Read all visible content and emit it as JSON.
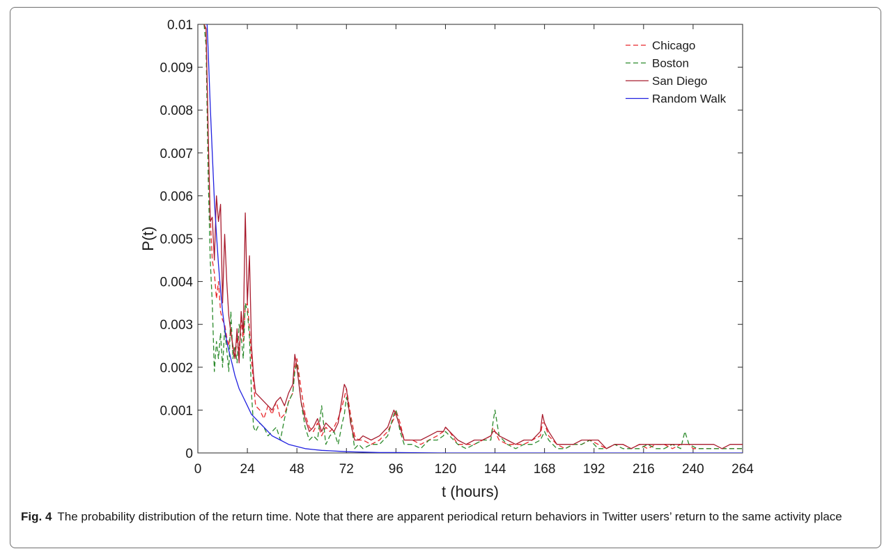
{
  "figure": {
    "label": "Fig. 4",
    "caption": "The probability distribution of the return time. Note that there are apparent periodical return behaviors in Twitter users’ return to the same activity place"
  },
  "chart_data": {
    "type": "line",
    "xlabel": "t (hours)",
    "ylabel": "P(t)",
    "xlim": [
      0,
      264
    ],
    "ylim": [
      0,
      0.01
    ],
    "xticks": [
      0,
      24,
      48,
      72,
      96,
      120,
      144,
      168,
      192,
      216,
      240,
      264
    ],
    "yticks": [
      0,
      0.001,
      0.002,
      0.003,
      0.004,
      0.005,
      0.006,
      0.007,
      0.008,
      0.009,
      0.01
    ],
    "ytick_labels": [
      "0",
      "0.001",
      "0.002",
      "0.003",
      "0.004",
      "0.005",
      "0.006",
      "0.007",
      "0.008",
      "0.009",
      "0.01"
    ],
    "legend_position": "top-right",
    "grid": false,
    "series": [
      {
        "name": "Chicago",
        "color": "#e8262a",
        "style": "dashed",
        "x": [
          3,
          4,
          5,
          6,
          7,
          8,
          9,
          10,
          11,
          12,
          13,
          14,
          15,
          16,
          17,
          18,
          19,
          20,
          21,
          22,
          23,
          24,
          25,
          26,
          27,
          28,
          30,
          32,
          34,
          36,
          38,
          40,
          42,
          44,
          46,
          47,
          48,
          50,
          52,
          54,
          56,
          58,
          60,
          62,
          64,
          66,
          68,
          70,
          71,
          72,
          74,
          76,
          78,
          80,
          84,
          88,
          92,
          95,
          96,
          98,
          100,
          104,
          108,
          112,
          116,
          119,
          120,
          122,
          126,
          130,
          134,
          138,
          142,
          143,
          144,
          146,
          150,
          154,
          158,
          162,
          166,
          167,
          168,
          170,
          174,
          178,
          182,
          186,
          190,
          194,
          198,
          202,
          206,
          210,
          214,
          218,
          222,
          226,
          230,
          234,
          238,
          240,
          244,
          248,
          252,
          256,
          260,
          264
        ],
        "y": [
          0.01,
          0.0098,
          0.0072,
          0.0055,
          0.0045,
          0.0042,
          0.0036,
          0.004,
          0.0033,
          0.0031,
          0.003,
          0.0027,
          0.0025,
          0.0029,
          0.0024,
          0.0022,
          0.0027,
          0.0024,
          0.0031,
          0.0026,
          0.0034,
          0.0035,
          0.0029,
          0.0022,
          0.0016,
          0.0011,
          0.001,
          0.0008,
          0.0011,
          0.0009,
          0.0012,
          0.0008,
          0.0009,
          0.0012,
          0.0014,
          0.002,
          0.0022,
          0.0015,
          0.0009,
          0.0006,
          0.0005,
          0.0007,
          0.0004,
          0.0006,
          0.0005,
          0.0006,
          0.0008,
          0.0011,
          0.0013,
          0.0015,
          0.0009,
          0.0004,
          0.0003,
          0.0003,
          0.0002,
          0.0003,
          0.0005,
          0.0008,
          0.001,
          0.0007,
          0.0003,
          0.0003,
          0.0002,
          0.0003,
          0.0004,
          0.0005,
          0.0006,
          0.0005,
          0.0002,
          0.0002,
          0.0002,
          0.0003,
          0.0004,
          0.0006,
          0.0005,
          0.0003,
          0.0002,
          0.0002,
          0.0002,
          0.0003,
          0.0004,
          0.0007,
          0.0007,
          0.0004,
          0.0002,
          0.0001,
          0.0002,
          0.0002,
          0.0003,
          0.0002,
          0.0001,
          0.0002,
          0.0002,
          0.0001,
          0.0002,
          0.0001,
          0.0002,
          0.0002,
          0.0001,
          0.0002,
          0.0002,
          0.0001,
          0.0001,
          0.0001,
          0.0001,
          0.0001,
          0.0001,
          0.0001
        ]
      },
      {
        "name": "Boston",
        "color": "#2b8a2b",
        "style": "dashed",
        "x": [
          3,
          4,
          5,
          6,
          7,
          8,
          9,
          10,
          11,
          12,
          13,
          14,
          15,
          16,
          17,
          18,
          19,
          20,
          21,
          22,
          23,
          24,
          25,
          26,
          27,
          28,
          30,
          32,
          34,
          36,
          38,
          40,
          42,
          44,
          46,
          47,
          48,
          50,
          52,
          54,
          56,
          58,
          60,
          62,
          64,
          66,
          68,
          70,
          71,
          72,
          74,
          76,
          78,
          80,
          84,
          88,
          92,
          95,
          96,
          98,
          100,
          104,
          108,
          112,
          116,
          119,
          120,
          122,
          126,
          130,
          134,
          138,
          142,
          143,
          144,
          146,
          150,
          154,
          158,
          162,
          166,
          167,
          168,
          170,
          174,
          178,
          182,
          186,
          190,
          194,
          198,
          202,
          206,
          210,
          214,
          218,
          222,
          226,
          230,
          234,
          236,
          238,
          242,
          246,
          250,
          254,
          258,
          262,
          264
        ],
        "y": [
          0.01,
          0.0095,
          0.0065,
          0.0045,
          0.0035,
          0.0019,
          0.0026,
          0.0022,
          0.0028,
          0.002,
          0.0029,
          0.0024,
          0.0019,
          0.0033,
          0.0022,
          0.0025,
          0.0021,
          0.003,
          0.0027,
          0.0022,
          0.0035,
          0.0033,
          0.0027,
          0.0014,
          0.0006,
          0.0005,
          0.0007,
          0.0006,
          0.0004,
          0.0005,
          0.0006,
          0.0003,
          0.0008,
          0.0012,
          0.0014,
          0.0019,
          0.0021,
          0.0012,
          0.0006,
          0.0003,
          0.0004,
          0.0003,
          0.0011,
          0.0002,
          0.0004,
          0.0005,
          0.0002,
          0.0007,
          0.0009,
          0.0013,
          0.0008,
          0.0001,
          0.0002,
          0.0001,
          0.0002,
          0.0002,
          0.0004,
          0.0009,
          0.001,
          0.0005,
          0.0002,
          0.0002,
          0.0001,
          0.0003,
          0.0003,
          0.0004,
          0.0005,
          0.0004,
          0.0002,
          0.0001,
          0.0002,
          0.0003,
          0.0003,
          0.0007,
          0.001,
          0.0004,
          0.0002,
          0.0001,
          0.0002,
          0.0002,
          0.0003,
          0.0004,
          0.0005,
          0.0003,
          0.0001,
          0.0001,
          0.0002,
          0.0002,
          0.0003,
          0.0001,
          0.0001,
          0.0002,
          0.0001,
          0.0001,
          0.0001,
          0.0002,
          0.0001,
          0.0001,
          0.0002,
          0.0001,
          0.0005,
          0.0002,
          0.0001,
          0.0001,
          0.0001,
          0.0001,
          0.0001,
          0.0001,
          0.0001
        ]
      },
      {
        "name": "San Diego",
        "color": "#a81c2e",
        "style": "solid",
        "x": [
          3,
          4,
          5,
          6,
          7,
          8,
          9,
          10,
          11,
          12,
          13,
          14,
          15,
          16,
          17,
          18,
          19,
          20,
          21,
          22,
          23,
          24,
          25,
          26,
          27,
          28,
          30,
          32,
          34,
          36,
          38,
          40,
          42,
          44,
          46,
          47,
          48,
          50,
          52,
          54,
          56,
          58,
          60,
          62,
          64,
          66,
          68,
          70,
          71,
          72,
          74,
          76,
          78,
          80,
          84,
          88,
          92,
          95,
          96,
          98,
          100,
          104,
          108,
          112,
          116,
          119,
          120,
          122,
          126,
          130,
          134,
          138,
          142,
          143,
          144,
          146,
          150,
          154,
          158,
          162,
          166,
          167,
          168,
          170,
          174,
          178,
          182,
          186,
          190,
          194,
          198,
          202,
          206,
          210,
          214,
          218,
          222,
          226,
          230,
          234,
          238,
          242,
          246,
          250,
          254,
          258,
          262,
          264
        ],
        "y": [
          0.01,
          0.0099,
          0.0075,
          0.0054,
          0.0055,
          0.0045,
          0.006,
          0.0054,
          0.0058,
          0.0035,
          0.0051,
          0.004,
          0.0032,
          0.0028,
          0.0025,
          0.0022,
          0.0029,
          0.0021,
          0.0033,
          0.0028,
          0.0056,
          0.0035,
          0.0046,
          0.0025,
          0.0018,
          0.0014,
          0.0013,
          0.0012,
          0.0011,
          0.001,
          0.0012,
          0.0013,
          0.0011,
          0.0014,
          0.0016,
          0.0023,
          0.002,
          0.0012,
          0.0008,
          0.0005,
          0.0006,
          0.0008,
          0.0005,
          0.0007,
          0.0006,
          0.0005,
          0.0007,
          0.0013,
          0.0016,
          0.0015,
          0.0007,
          0.0003,
          0.0003,
          0.0004,
          0.0003,
          0.0004,
          0.0006,
          0.001,
          0.0009,
          0.0006,
          0.0003,
          0.0003,
          0.0003,
          0.0004,
          0.0005,
          0.0005,
          0.0006,
          0.0005,
          0.0003,
          0.0002,
          0.0003,
          0.0003,
          0.0004,
          0.0005,
          0.0005,
          0.0004,
          0.0003,
          0.0002,
          0.0003,
          0.0003,
          0.0005,
          0.0009,
          0.0007,
          0.0005,
          0.0002,
          0.0002,
          0.0002,
          0.0003,
          0.0003,
          0.0003,
          0.0001,
          0.0002,
          0.0002,
          0.0001,
          0.0002,
          0.0002,
          0.0002,
          0.0002,
          0.0002,
          0.0002,
          0.0002,
          0.0002,
          0.0002,
          0.0002,
          0.0001,
          0.0002,
          0.0002,
          0.0002
        ]
      },
      {
        "name": "Random Walk",
        "color": "#2020e0",
        "style": "solid",
        "x": [
          4.5,
          5,
          6,
          7,
          8,
          9,
          10,
          11,
          12,
          13,
          14,
          15,
          16,
          17,
          18,
          20,
          22,
          24,
          26,
          28,
          30,
          32,
          34,
          36,
          40,
          44,
          48,
          52,
          56,
          60,
          64,
          72,
          80,
          88,
          96,
          120,
          144,
          168,
          192,
          216,
          240,
          264
        ],
        "y": [
          0.01,
          0.0094,
          0.0081,
          0.007,
          0.0059,
          0.0051,
          0.0044,
          0.0038,
          0.0033,
          0.0029,
          0.0026,
          0.0024,
          0.0022,
          0.002,
          0.0018,
          0.0015,
          0.0013,
          0.0011,
          0.0009,
          0.0008,
          0.0007,
          0.0006,
          0.0005,
          0.0004,
          0.0003,
          0.0002,
          0.00015,
          0.0001,
          8e-05,
          6e-05,
          5e-05,
          3e-05,
          2e-05,
          1e-05,
          1e-05,
          0,
          0,
          0,
          0,
          0,
          0,
          0
        ]
      }
    ]
  }
}
